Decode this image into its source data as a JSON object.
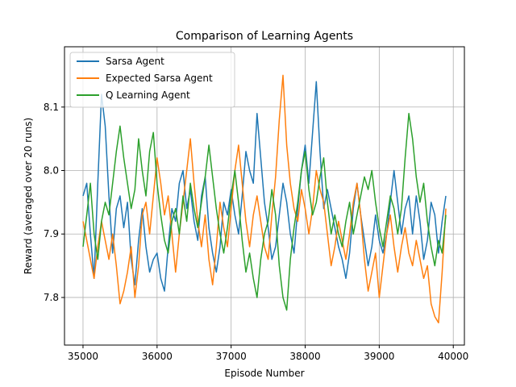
{
  "chart_data": {
    "type": "line",
    "title": "Comparison of Learning Agents",
    "xlabel": "Episode Number",
    "ylabel": "Reward (averaged over 20 runs)",
    "xlim": [
      34750,
      40150
    ],
    "ylim": [
      7.725,
      8.195
    ],
    "xticks": [
      35000,
      36000,
      37000,
      38000,
      39000,
      40000
    ],
    "yticks": [
      7.8,
      7.9,
      8.0,
      8.1
    ],
    "ytick_labels": [
      "7.8",
      "7.9",
      "8.0",
      "8.1"
    ],
    "grid": true,
    "legend_position": "top-left",
    "series": [
      {
        "name": "Sarsa Agent",
        "color": "#1f77b4",
        "x": [
          35000,
          35050,
          35100,
          35150,
          35200,
          35250,
          35300,
          35350,
          35400,
          35450,
          35500,
          35550,
          35600,
          35650,
          35700,
          35750,
          35800,
          35850,
          35900,
          35950,
          36000,
          36050,
          36100,
          36150,
          36200,
          36250,
          36300,
          36350,
          36400,
          36450,
          36500,
          36550,
          36600,
          36650,
          36700,
          36750,
          36800,
          36850,
          36900,
          36950,
          37000,
          37050,
          37100,
          37150,
          37200,
          37250,
          37300,
          37350,
          37400,
          37450,
          37500,
          37550,
          37600,
          37650,
          37700,
          37750,
          37800,
          37850,
          37900,
          37950,
          38000,
          38050,
          38100,
          38150,
          38200,
          38250,
          38300,
          38350,
          38400,
          38450,
          38500,
          38550,
          38600,
          38650,
          38700,
          38750,
          38800,
          38850,
          38900,
          38950,
          39000,
          39050,
          39100,
          39150,
          39200,
          39250,
          39300,
          39350,
          39400,
          39450,
          39500,
          39550,
          39600,
          39650,
          39700,
          39750,
          39800,
          39850,
          39900
        ],
        "values": [
          7.96,
          7.98,
          7.9,
          7.83,
          7.98,
          8.12,
          8.07,
          7.96,
          7.87,
          7.94,
          7.96,
          7.91,
          7.95,
          7.86,
          7.82,
          7.89,
          7.94,
          7.88,
          7.84,
          7.86,
          7.87,
          7.83,
          7.81,
          7.88,
          7.94,
          7.92,
          7.98,
          8.0,
          7.94,
          7.97,
          7.92,
          7.89,
          7.96,
          7.99,
          7.91,
          7.87,
          7.84,
          7.88,
          7.95,
          7.93,
          7.97,
          7.93,
          7.9,
          7.96,
          8.03,
          8.0,
          7.98,
          8.09,
          8.02,
          7.95,
          7.91,
          7.86,
          7.88,
          7.93,
          7.98,
          7.95,
          7.9,
          7.87,
          7.94,
          8.0,
          8.04,
          7.98,
          8.06,
          8.14,
          8.03,
          7.94,
          7.97,
          7.94,
          7.91,
          7.88,
          7.86,
          7.83,
          7.87,
          7.94,
          7.98,
          7.93,
          7.89,
          7.85,
          7.88,
          7.93,
          7.89,
          7.87,
          7.9,
          7.95,
          8.0,
          7.95,
          7.9,
          7.94,
          7.96,
          7.9,
          7.96,
          7.92,
          7.86,
          7.89,
          7.95,
          7.93,
          7.87,
          7.92,
          7.96
        ]
      },
      {
        "name": "Expected Sarsa Agent",
        "color": "#ff7f0e",
        "x": [
          35000,
          35050,
          35100,
          35150,
          35200,
          35250,
          35300,
          35350,
          35400,
          35450,
          35500,
          35550,
          35600,
          35650,
          35700,
          35750,
          35800,
          35850,
          35900,
          35950,
          36000,
          36050,
          36100,
          36150,
          36200,
          36250,
          36300,
          36350,
          36400,
          36450,
          36500,
          36550,
          36600,
          36650,
          36700,
          36750,
          36800,
          36850,
          36900,
          36950,
          37000,
          37050,
          37100,
          37150,
          37200,
          37250,
          37300,
          37350,
          37400,
          37450,
          37500,
          37550,
          37600,
          37650,
          37700,
          37750,
          37800,
          37850,
          37900,
          37950,
          38000,
          38050,
          38100,
          38150,
          38200,
          38250,
          38300,
          38350,
          38400,
          38450,
          38500,
          38550,
          38600,
          38650,
          38700,
          38750,
          38800,
          38850,
          38900,
          38950,
          39000,
          39050,
          39100,
          39150,
          39200,
          39250,
          39300,
          39350,
          39400,
          39450,
          39500,
          39550,
          39600,
          39650,
          39700,
          39750,
          39800,
          39850,
          39900
        ],
        "values": [
          7.92,
          7.89,
          7.86,
          7.83,
          7.88,
          7.92,
          7.89,
          7.86,
          7.9,
          7.85,
          7.79,
          7.81,
          7.84,
          7.88,
          7.8,
          7.85,
          7.93,
          7.95,
          7.9,
          7.96,
          8.02,
          7.98,
          7.93,
          7.96,
          7.9,
          7.84,
          7.9,
          7.95,
          8.0,
          8.05,
          7.98,
          7.92,
          7.88,
          7.93,
          7.86,
          7.82,
          7.88,
          7.95,
          7.91,
          7.88,
          7.94,
          8.0,
          8.04,
          7.98,
          7.92,
          7.88,
          7.93,
          7.96,
          7.92,
          7.88,
          7.86,
          7.93,
          7.99,
          8.08,
          8.15,
          8.04,
          7.98,
          7.94,
          7.92,
          7.97,
          7.94,
          7.9,
          7.94,
          8.0,
          7.97,
          7.95,
          7.9,
          7.85,
          7.88,
          7.92,
          7.89,
          7.86,
          7.9,
          7.95,
          7.98,
          7.93,
          7.86,
          7.81,
          7.84,
          7.87,
          7.8,
          7.85,
          7.9,
          7.93,
          7.88,
          7.84,
          7.88,
          7.91,
          7.87,
          7.85,
          7.89,
          7.86,
          7.83,
          7.85,
          7.79,
          7.77,
          7.76,
          7.84,
          7.94
        ]
      },
      {
        "name": "Q Learning Agent",
        "color": "#2ca02c",
        "x": [
          35000,
          35050,
          35100,
          35150,
          35200,
          35250,
          35300,
          35350,
          35400,
          35450,
          35500,
          35550,
          35600,
          35650,
          35700,
          35750,
          35800,
          35850,
          35900,
          35950,
          36000,
          36050,
          36100,
          36150,
          36200,
          36250,
          36300,
          36350,
          36400,
          36450,
          36500,
          36550,
          36600,
          36650,
          36700,
          36750,
          36800,
          36850,
          36900,
          36950,
          37000,
          37050,
          37100,
          37150,
          37200,
          37250,
          37300,
          37350,
          37400,
          37450,
          37500,
          37550,
          37600,
          37650,
          37700,
          37750,
          37800,
          37850,
          37900,
          37950,
          38000,
          38050,
          38100,
          38150,
          38200,
          38250,
          38300,
          38350,
          38400,
          38450,
          38500,
          38550,
          38600,
          38650,
          38700,
          38750,
          38800,
          38850,
          38900,
          38950,
          39000,
          39050,
          39100,
          39150,
          39200,
          39250,
          39300,
          39350,
          39400,
          39450,
          39500,
          39550,
          39600,
          39650,
          39700,
          39750,
          39800,
          39850,
          39900
        ],
        "values": [
          7.88,
          7.93,
          7.98,
          7.9,
          7.86,
          7.92,
          7.95,
          7.93,
          7.98,
          8.03,
          8.07,
          8.02,
          7.98,
          7.94,
          7.97,
          8.05,
          8.0,
          7.96,
          8.03,
          8.06,
          7.98,
          7.93,
          7.89,
          7.87,
          7.92,
          7.94,
          7.9,
          7.96,
          7.92,
          7.98,
          7.94,
          7.91,
          7.95,
          7.99,
          8.04,
          7.99,
          7.94,
          7.9,
          7.87,
          7.91,
          7.96,
          8.0,
          7.95,
          7.89,
          7.84,
          7.87,
          7.83,
          7.8,
          7.86,
          7.9,
          7.92,
          7.97,
          7.93,
          7.85,
          7.8,
          7.78,
          7.86,
          7.91,
          7.95,
          8.0,
          8.03,
          7.97,
          7.93,
          7.95,
          7.99,
          8.02,
          7.95,
          7.9,
          7.93,
          7.9,
          7.88,
          7.92,
          7.95,
          7.9,
          7.93,
          7.96,
          7.99,
          7.97,
          8.0,
          7.95,
          7.91,
          7.88,
          7.92,
          7.96,
          7.94,
          7.9,
          7.94,
          8.02,
          8.09,
          8.05,
          7.99,
          7.95,
          7.98,
          7.92,
          7.88,
          7.85,
          7.89,
          7.87,
          7.93
        ]
      }
    ]
  }
}
